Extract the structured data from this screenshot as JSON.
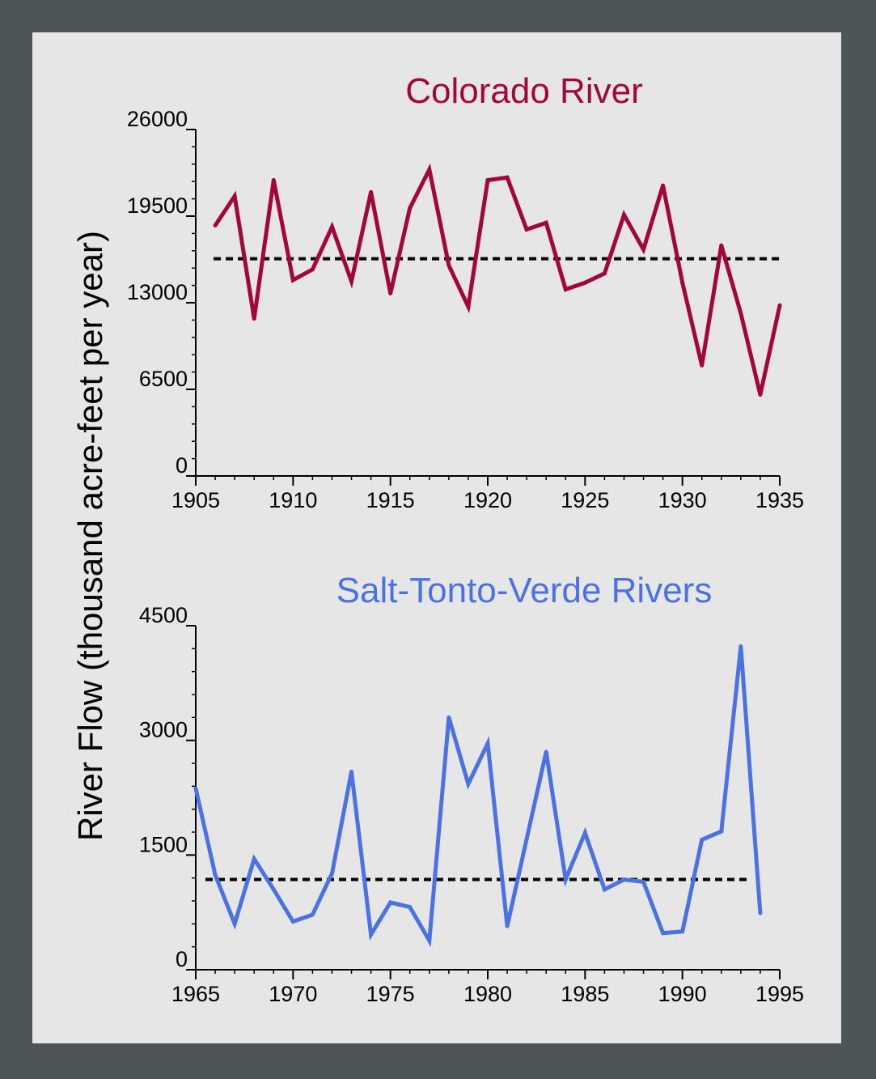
{
  "y_axis_label": "River Flow (thousand acre-feet per year)",
  "chart_data": [
    {
      "type": "line",
      "title": "Colorado River",
      "title_color": "#a2063c",
      "line_color": "#a2063c",
      "ylabel": "River Flow (thousand acre-feet per year)",
      "xlim": [
        1905,
        1935
      ],
      "ylim": [
        0,
        26000
      ],
      "x_ticks": [
        1905,
        1910,
        1915,
        1920,
        1925,
        1930,
        1935
      ],
      "y_ticks": [
        0,
        6500,
        13000,
        19500,
        26000
      ],
      "y_minor_step": 1300,
      "mean_line": 16300,
      "series": [
        {
          "x": [
            1906,
            1907,
            1908,
            1909,
            1910,
            1911,
            1912,
            1913,
            1914,
            1915,
            1916,
            1917,
            1918,
            1919,
            1920,
            1921,
            1922,
            1923,
            1924,
            1925,
            1926,
            1927,
            1928,
            1929,
            1930,
            1931,
            1932,
            1933,
            1934,
            1935
          ],
          "values": [
            18800,
            21000,
            11800,
            22200,
            14700,
            15500,
            18700,
            14600,
            21300,
            13700,
            20100,
            23000,
            15800,
            12700,
            22200,
            22400,
            18500,
            19000,
            14000,
            14500,
            15200,
            19600,
            17000,
            21800,
            14500,
            8300,
            17300,
            12200,
            6100,
            12800
          ]
        }
      ]
    },
    {
      "type": "line",
      "title": "Salt-Tonto-Verde Rivers",
      "title_color": "#4a72e2",
      "line_color": "#4a72e2",
      "ylabel": "River Flow (thousand acre-feet per year)",
      "xlim": [
        1965,
        1995
      ],
      "ylim": [
        0,
        4500
      ],
      "x_ticks": [
        1965,
        1970,
        1975,
        1980,
        1985,
        1990,
        1995
      ],
      "y_ticks": [
        0,
        1500,
        3000,
        4500
      ],
      "y_minor_step": 300,
      "mean_line": 1180,
      "series": [
        {
          "x": [
            1965,
            1966,
            1967,
            1968,
            1969,
            1970,
            1971,
            1972,
            1973,
            1974,
            1975,
            1976,
            1977,
            1978,
            1979,
            1980,
            1981,
            1982,
            1983,
            1984,
            1985,
            1986,
            1987,
            1988,
            1989,
            1990,
            1991,
            1992,
            1993,
            1994
          ],
          "values": [
            2370,
            1240,
            600,
            1450,
            1050,
            630,
            720,
            1260,
            2590,
            460,
            880,
            820,
            380,
            3300,
            2430,
            2960,
            570,
            1710,
            2850,
            1180,
            1790,
            1050,
            1180,
            1150,
            480,
            500,
            1700,
            1810,
            4230,
            740
          ]
        }
      ]
    }
  ]
}
